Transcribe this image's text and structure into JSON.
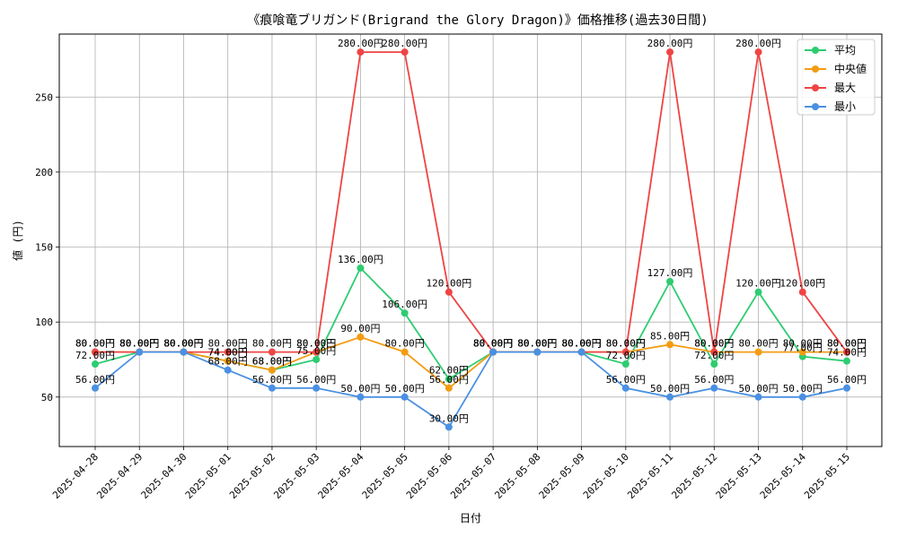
{
  "chart_data": {
    "type": "line",
    "title": "《痕喰竜ブリガンド(Brigrand the Glory Dragon)》価格推移(過去30日間)",
    "xlabel": "日付",
    "ylabel": "値 (円)",
    "value_suffix": "円",
    "categories": [
      "2025-04-28",
      "2025-04-29",
      "2025-04-30",
      "2025-05-01",
      "2025-05-02",
      "2025-05-03",
      "2025-05-04",
      "2025-05-05",
      "2025-05-06",
      "2025-05-07",
      "2025-05-08",
      "2025-05-09",
      "2025-05-10",
      "2025-05-11",
      "2025-05-12",
      "2025-05-13",
      "2025-05-14",
      "2025-05-15"
    ],
    "ylim": [
      17,
      292
    ],
    "yticks": [
      50,
      100,
      150,
      200,
      250
    ],
    "grid": true,
    "legend_position": "top-right",
    "series": [
      {
        "name": "平均",
        "color": "#2ecc71",
        "values": [
          72,
          80,
          80,
          74,
          68,
          75,
          136,
          106,
          62,
          80,
          80,
          80,
          72,
          127,
          72,
          120,
          77,
          74
        ]
      },
      {
        "name": "中央値",
        "color": "#f39c12",
        "values": [
          80,
          80,
          80,
          74,
          68,
          80,
          90,
          80,
          56,
          80,
          80,
          80,
          80,
          85,
          80,
          80,
          80,
          80
        ]
      },
      {
        "name": "最大",
        "color": "#ef4444",
        "values": [
          80,
          80,
          80,
          80,
          80,
          80,
          280,
          280,
          120,
          80,
          80,
          80,
          80,
          280,
          80,
          280,
          120,
          80
        ]
      },
      {
        "name": "最小",
        "color": "#4a90e2",
        "values": [
          56,
          80,
          80,
          68,
          56,
          56,
          50,
          50,
          30,
          80,
          80,
          80,
          56,
          50,
          56,
          50,
          50,
          56
        ]
      }
    ]
  }
}
